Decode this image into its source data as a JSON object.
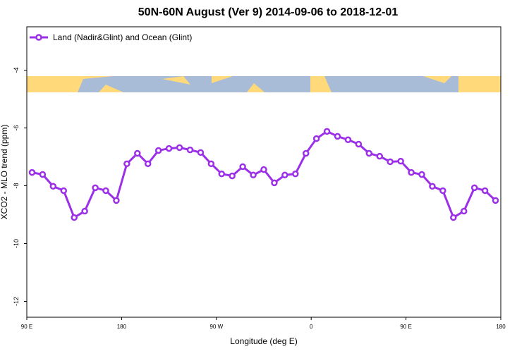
{
  "chart_data": {
    "type": "line",
    "title": "50N-60N August (Ver 9)   2014-09-06 to 2018-12-01",
    "x_label": "Longitude (deg E)",
    "y_label": "XCO2 - MLO trend (ppm)",
    "xlim": [
      90,
      540
    ],
    "ylim": [
      -12.55,
      -2.5
    ],
    "xticks": [
      {
        "value": 90,
        "label": "90 E"
      },
      180,
      {
        "value": 270,
        "label": "90 W"
      },
      {
        "value": 360,
        "label": "0"
      },
      {
        "value": 450,
        "label": "90 E"
      },
      {
        "value": 540,
        "label": "180"
      }
    ],
    "yticks": [
      -4,
      -6,
      -8,
      -10,
      -12
    ],
    "x": [
      95,
      105,
      115,
      125,
      135,
      145,
      155,
      165,
      175,
      185,
      195,
      205,
      215,
      225,
      235,
      245,
      255,
      265,
      275,
      285,
      295,
      305,
      315,
      325,
      335,
      345,
      355,
      365,
      375,
      385,
      395,
      405,
      415,
      425,
      435,
      445,
      455,
      465,
      475,
      485,
      495,
      505,
      515,
      525,
      535
    ],
    "series": [
      {
        "name": "Land (Nadir&Glint) and Ocean (Glint)",
        "color": "#9b30e8",
        "values": [
          -7.54,
          -7.61,
          -8.02,
          -8.17,
          -9.1,
          -8.88,
          -8.07,
          -8.17,
          -8.51,
          -7.24,
          -6.88,
          -7.24,
          -6.78,
          -6.71,
          -6.68,
          -6.76,
          -6.85,
          -7.24,
          -7.59,
          -7.66,
          -7.34,
          -7.63,
          -7.44,
          -7.9,
          -7.63,
          -7.59,
          -6.88,
          -6.37,
          -6.12,
          -6.29,
          -6.41,
          -6.56,
          -6.88,
          -6.98,
          -7.17,
          -7.15,
          -7.54,
          -7.61,
          -8.02,
          -8.17,
          -9.1,
          -8.88,
          -8.07,
          -8.17,
          -8.51
        ]
      }
    ],
    "legend": "upper-left"
  }
}
